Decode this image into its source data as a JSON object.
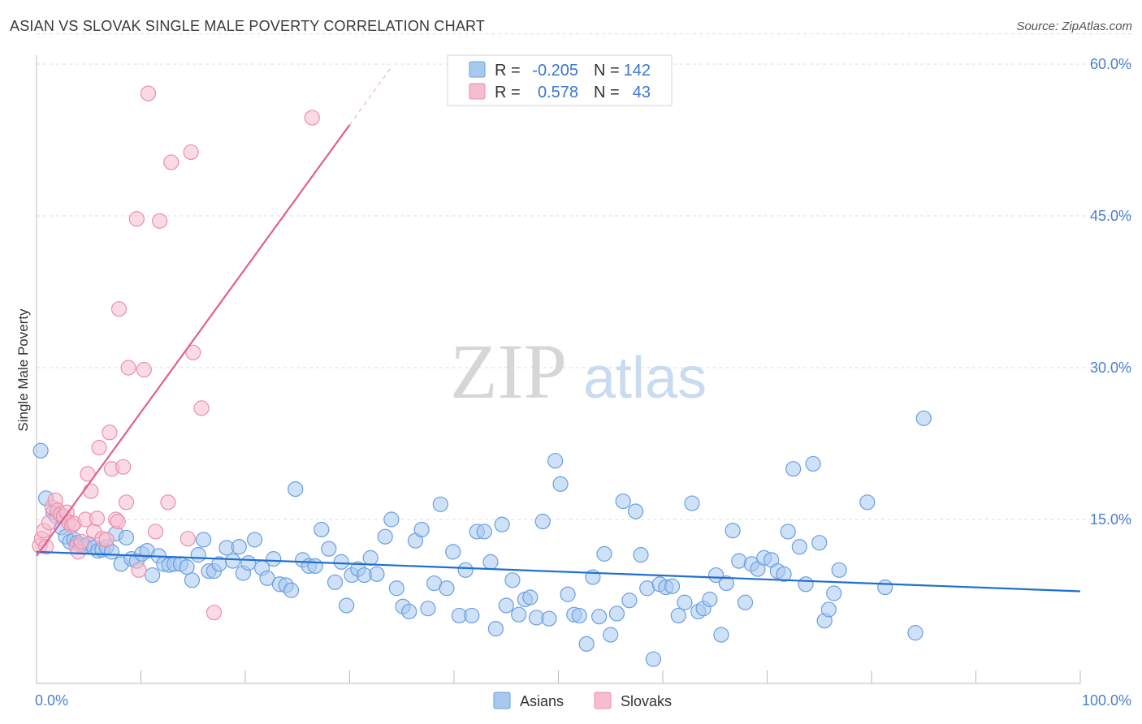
{
  "title": "ASIAN VS SLOVAK SINGLE MALE POVERTY CORRELATION CHART",
  "source": "Source: ZipAtlas.com",
  "watermark": {
    "zip": "ZIP",
    "atlas": "atlas"
  },
  "colors": {
    "asians_fill": "#a8c8ee",
    "asians_stroke": "#6a9fe0",
    "asians_line": "#1f6fd1",
    "slovaks_fill": "#f6bcd0",
    "slovaks_stroke": "#ea8fae",
    "slovaks_line": "#e0608c",
    "tick_text": "#4a7fd0",
    "grid": "#dddddd"
  },
  "legend": {
    "rows": [
      {
        "r_label": "R =",
        "r_value": "-0.205",
        "n_label": "N =",
        "n_value": "142"
      },
      {
        "r_label": "R =",
        "r_value": "0.578",
        "n_label": "N =",
        "n_value": "43"
      }
    ]
  },
  "chart_data": {
    "type": "scatter",
    "title": "ASIAN VS SLOVAK SINGLE MALE POVERTY CORRELATION CHART",
    "xlabel": "",
    "ylabel": "Single Male Poverty",
    "xlim": [
      0,
      100
    ],
    "ylim": [
      0,
      63
    ],
    "x_tick_labels": [
      "0.0%",
      "100.0%"
    ],
    "y_ticks": [
      15,
      30,
      45,
      60
    ],
    "y_tick_labels": [
      "15.0%",
      "30.0%",
      "45.0%",
      "60.0%"
    ],
    "legend_position": "bottom-center",
    "series": [
      {
        "name": "Asians",
        "r": -0.205,
        "n": 142,
        "trend": {
          "x0": 0,
          "y0": 11.8,
          "x1": 100,
          "y1": 7.9
        },
        "points": [
          [
            0.4,
            21.8
          ],
          [
            0.9,
            17.1
          ],
          [
            1.6,
            15.7
          ],
          [
            1.9,
            15.3
          ],
          [
            2.4,
            14.2
          ],
          [
            2.8,
            13.3
          ],
          [
            3.2,
            12.8
          ],
          [
            3.6,
            13.0
          ],
          [
            3.9,
            12.7
          ],
          [
            4.2,
            12.5
          ],
          [
            4.6,
            12.4
          ],
          [
            5.0,
            12.6
          ],
          [
            5.5,
            12.2
          ],
          [
            5.9,
            11.9
          ],
          [
            6.3,
            12.0
          ],
          [
            6.7,
            12.3
          ],
          [
            7.2,
            11.8
          ],
          [
            7.6,
            13.6
          ],
          [
            8.1,
            10.6
          ],
          [
            8.6,
            13.2
          ],
          [
            9.1,
            11.1
          ],
          [
            9.6,
            10.9
          ],
          [
            10.1,
            11.6
          ],
          [
            10.6,
            11.9
          ],
          [
            11.1,
            9.5
          ],
          [
            11.7,
            11.4
          ],
          [
            12.2,
            10.6
          ],
          [
            12.7,
            10.5
          ],
          [
            13.2,
            10.6
          ],
          [
            13.8,
            10.6
          ],
          [
            14.4,
            10.3
          ],
          [
            14.9,
            9.0
          ],
          [
            15.5,
            11.5
          ],
          [
            16.0,
            13.0
          ],
          [
            16.5,
            9.9
          ],
          [
            17.0,
            9.9
          ],
          [
            17.5,
            10.6
          ],
          [
            18.2,
            12.2
          ],
          [
            18.8,
            10.9
          ],
          [
            19.4,
            12.3
          ],
          [
            19.8,
            9.7
          ],
          [
            20.3,
            10.7
          ],
          [
            20.9,
            13.0
          ],
          [
            21.6,
            10.2
          ],
          [
            22.1,
            9.2
          ],
          [
            22.7,
            11.1
          ],
          [
            23.3,
            8.6
          ],
          [
            23.9,
            8.5
          ],
          [
            24.4,
            8.0
          ],
          [
            24.8,
            18.0
          ],
          [
            25.5,
            11.0
          ],
          [
            26.1,
            10.4
          ],
          [
            26.7,
            10.4
          ],
          [
            27.3,
            14.0
          ],
          [
            28.0,
            12.1
          ],
          [
            28.6,
            8.8
          ],
          [
            29.2,
            10.8
          ],
          [
            29.7,
            6.5
          ],
          [
            30.2,
            9.5
          ],
          [
            30.8,
            10.1
          ],
          [
            31.4,
            9.5
          ],
          [
            32.0,
            11.2
          ],
          [
            32.6,
            9.6
          ],
          [
            33.4,
            13.3
          ],
          [
            34.0,
            15.0
          ],
          [
            34.5,
            8.2
          ],
          [
            35.1,
            6.4
          ],
          [
            35.7,
            5.9
          ],
          [
            36.3,
            12.9
          ],
          [
            36.9,
            14.0
          ],
          [
            37.5,
            6.2
          ],
          [
            38.1,
            8.7
          ],
          [
            38.7,
            16.5
          ],
          [
            39.3,
            8.2
          ],
          [
            39.9,
            11.8
          ],
          [
            40.5,
            5.5
          ],
          [
            41.1,
            10.0
          ],
          [
            41.7,
            5.5
          ],
          [
            42.2,
            13.8
          ],
          [
            42.9,
            13.8
          ],
          [
            43.5,
            10.8
          ],
          [
            44.0,
            4.2
          ],
          [
            44.6,
            14.5
          ],
          [
            45.0,
            6.5
          ],
          [
            45.6,
            9.0
          ],
          [
            46.2,
            5.6
          ],
          [
            46.8,
            7.1
          ],
          [
            47.3,
            7.3
          ],
          [
            47.9,
            5.3
          ],
          [
            48.5,
            14.8
          ],
          [
            49.1,
            5.2
          ],
          [
            49.7,
            20.8
          ],
          [
            50.2,
            18.5
          ],
          [
            50.9,
            7.6
          ],
          [
            51.5,
            5.6
          ],
          [
            52.0,
            5.5
          ],
          [
            52.7,
            2.7
          ],
          [
            53.3,
            9.3
          ],
          [
            53.9,
            5.4
          ],
          [
            54.4,
            11.6
          ],
          [
            55.0,
            3.6
          ],
          [
            55.6,
            5.7
          ],
          [
            56.2,
            16.8
          ],
          [
            56.8,
            7.0
          ],
          [
            57.4,
            15.8
          ],
          [
            57.9,
            11.5
          ],
          [
            58.5,
            8.2
          ],
          [
            59.1,
            1.2
          ],
          [
            59.7,
            8.6
          ],
          [
            60.3,
            8.3
          ],
          [
            60.9,
            8.4
          ],
          [
            61.5,
            5.5
          ],
          [
            62.1,
            6.8
          ],
          [
            62.8,
            16.6
          ],
          [
            63.4,
            5.9
          ],
          [
            63.9,
            6.2
          ],
          [
            64.5,
            7.1
          ],
          [
            65.1,
            9.5
          ],
          [
            65.6,
            3.6
          ],
          [
            66.1,
            8.7
          ],
          [
            66.7,
            13.9
          ],
          [
            67.3,
            10.9
          ],
          [
            67.9,
            6.8
          ],
          [
            68.5,
            10.6
          ],
          [
            69.1,
            10.1
          ],
          [
            69.7,
            11.2
          ],
          [
            70.4,
            11.0
          ],
          [
            71.0,
            9.9
          ],
          [
            71.6,
            9.6
          ],
          [
            72.0,
            13.8
          ],
          [
            72.5,
            20.0
          ],
          [
            73.1,
            12.3
          ],
          [
            73.7,
            8.6
          ],
          [
            74.4,
            20.5
          ],
          [
            75.0,
            12.7
          ],
          [
            75.5,
            5.0
          ],
          [
            75.9,
            6.1
          ],
          [
            76.4,
            7.7
          ],
          [
            76.9,
            10.0
          ],
          [
            79.6,
            16.7
          ],
          [
            81.3,
            8.3
          ],
          [
            84.2,
            3.8
          ],
          [
            85.0,
            25.0
          ]
        ]
      },
      {
        "name": "Slovaks",
        "r": 0.578,
        "n": 43,
        "trend": {
          "x0": 0,
          "y0": 11.4,
          "x1": 30,
          "y1": 54.0,
          "dash_x1": 34,
          "dash_y1": 59.7
        },
        "points": [
          [
            0.3,
            12.4
          ],
          [
            0.5,
            13.1
          ],
          [
            0.7,
            13.9
          ],
          [
            0.9,
            12.3
          ],
          [
            1.2,
            14.7
          ],
          [
            1.5,
            16.2
          ],
          [
            1.8,
            16.9
          ],
          [
            2.0,
            15.9
          ],
          [
            2.3,
            15.5
          ],
          [
            2.6,
            15.3
          ],
          [
            2.9,
            15.7
          ],
          [
            3.1,
            14.7
          ],
          [
            3.4,
            14.4
          ],
          [
            3.6,
            14.6
          ],
          [
            3.8,
            12.3
          ],
          [
            4.0,
            11.8
          ],
          [
            4.3,
            12.8
          ],
          [
            4.7,
            15.0
          ],
          [
            4.9,
            19.5
          ],
          [
            5.2,
            17.8
          ],
          [
            5.5,
            13.8
          ],
          [
            5.8,
            15.1
          ],
          [
            6.0,
            22.1
          ],
          [
            6.3,
            13.1
          ],
          [
            6.7,
            13.0
          ],
          [
            7.0,
            23.6
          ],
          [
            7.2,
            20.0
          ],
          [
            7.6,
            15.0
          ],
          [
            7.8,
            14.8
          ],
          [
            7.9,
            35.8
          ],
          [
            8.3,
            20.2
          ],
          [
            8.6,
            16.7
          ],
          [
            8.8,
            30.0
          ],
          [
            9.6,
            44.7
          ],
          [
            9.8,
            10.0
          ],
          [
            10.3,
            29.8
          ],
          [
            10.7,
            57.1
          ],
          [
            11.4,
            13.8
          ],
          [
            11.8,
            44.5
          ],
          [
            12.6,
            16.7
          ],
          [
            12.9,
            50.3
          ],
          [
            14.5,
            13.1
          ],
          [
            14.8,
            51.3
          ],
          [
            15.0,
            31.5
          ],
          [
            17.0,
            5.8
          ],
          [
            26.4,
            54.7
          ],
          [
            15.8,
            26.0
          ]
        ]
      }
    ]
  }
}
